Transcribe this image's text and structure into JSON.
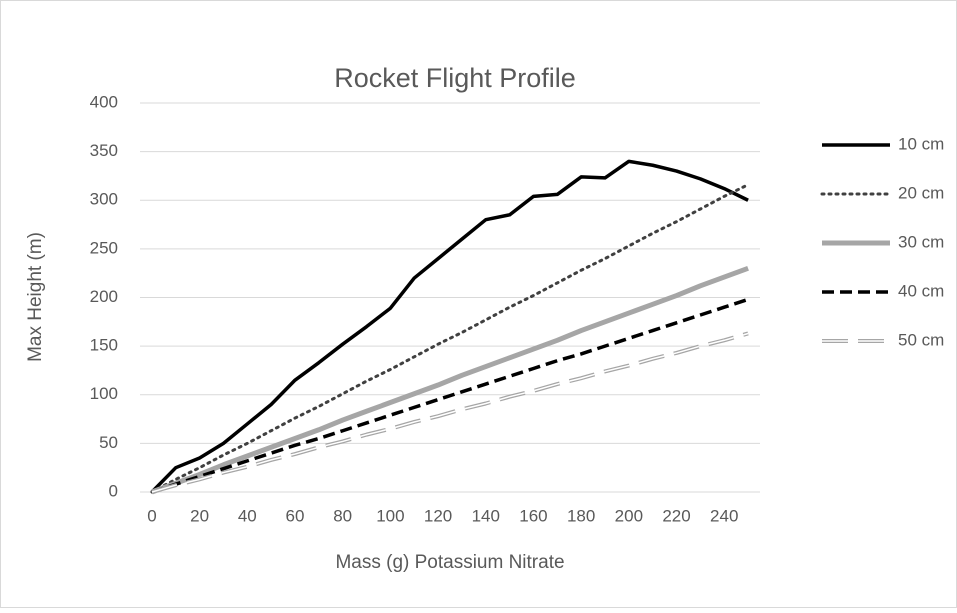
{
  "chart_data": {
    "type": "line",
    "title": "Rocket Flight Profile",
    "x_label": "Mass (g) Potassium Nitrate",
    "y_label": "Max Height (m)",
    "x": [
      0,
      10,
      20,
      30,
      40,
      50,
      60,
      70,
      80,
      90,
      100,
      110,
      120,
      130,
      140,
      150,
      160,
      170,
      180,
      190,
      200,
      210,
      220,
      230,
      240,
      250
    ],
    "xlim": [
      -5,
      255
    ],
    "xticks": [
      0,
      20,
      40,
      60,
      80,
      100,
      120,
      140,
      160,
      180,
      200,
      220,
      240
    ],
    "ylim": [
      0,
      400
    ],
    "yticks": [
      0,
      50,
      100,
      150,
      200,
      250,
      300,
      350,
      400
    ],
    "grid": true,
    "legend": "right",
    "series": [
      {
        "name": "10 cm",
        "color": "#000000",
        "style": "solid",
        "values": [
          0,
          25,
          35,
          50,
          70,
          90,
          115,
          133,
          152,
          170,
          189,
          220,
          240,
          260,
          280,
          285,
          304,
          306,
          324,
          323,
          340,
          336,
          330,
          322,
          312,
          300
        ]
      },
      {
        "name": "20 cm",
        "color": "#404040",
        "style": "dotted",
        "values": [
          0,
          13,
          25,
          38,
          50,
          63,
          76,
          88,
          101,
          114,
          126,
          139,
          152,
          164,
          177,
          190,
          202,
          215,
          228,
          240,
          253,
          266,
          278,
          291,
          304,
          316
        ]
      },
      {
        "name": "30 cm",
        "color": "#a6a6a6",
        "style": "thick",
        "values": [
          0,
          9,
          18,
          28,
          37,
          46,
          55,
          64,
          74,
          83,
          92,
          101,
          110,
          120,
          129,
          138,
          147,
          156,
          166,
          175,
          184,
          193,
          202,
          212,
          221,
          230
        ]
      },
      {
        "name": "40 cm",
        "color": "#000000",
        "style": "dashed",
        "values": [
          0,
          8,
          16,
          24,
          32,
          40,
          48,
          55,
          63,
          71,
          79,
          87,
          95,
          103,
          111,
          119,
          127,
          135,
          142,
          150,
          158,
          166,
          174,
          182,
          190,
          198
        ]
      },
      {
        "name": "50 cm",
        "color": "#a6a6a6",
        "style": "double",
        "values": [
          0,
          7,
          13,
          20,
          26,
          33,
          39,
          46,
          52,
          59,
          65,
          72,
          78,
          85,
          91,
          98,
          104,
          111,
          117,
          124,
          130,
          137,
          143,
          150,
          156,
          163
        ]
      }
    ]
  }
}
